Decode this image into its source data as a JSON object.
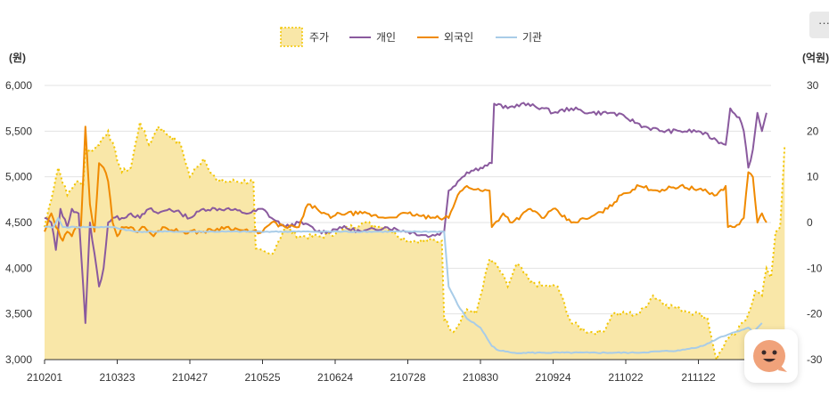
{
  "menu": {
    "label": "···"
  },
  "chart_data": {
    "type": "line",
    "left_axis_label": "(원)",
    "right_axis_label": "(억원)",
    "left_ylim": [
      3000,
      6000
    ],
    "left_ticks": [
      "3,000",
      "3,500",
      "4,000",
      "4,500",
      "5,000",
      "5,500",
      "6,000"
    ],
    "right_ylim": [
      -30,
      30
    ],
    "right_ticks": [
      "-30",
      "-20",
      "-10",
      "0",
      "10",
      "20",
      "30"
    ],
    "x_tick_labels": [
      "210201",
      "210323",
      "210427",
      "210525",
      "210624",
      "210728",
      "210830",
      "210924",
      "211022",
      "211122",
      "21"
    ],
    "x_tick_index": [
      0,
      32,
      64,
      96,
      128,
      160,
      192,
      224,
      256,
      288,
      314
    ],
    "grid": "horizontal",
    "legend_position": "top-center",
    "n_points": 321,
    "series": [
      {
        "name": "주가",
        "axis": "left",
        "style": "area-dotted",
        "color": "#f2c500",
        "fill": "#f9e7a8",
        "keyframes": [
          [
            0,
            4450
          ],
          [
            6,
            5100
          ],
          [
            10,
            4800
          ],
          [
            14,
            4950
          ],
          [
            17,
            4900
          ],
          [
            18,
            5300
          ],
          [
            22,
            5300
          ],
          [
            28,
            5500
          ],
          [
            34,
            5050
          ],
          [
            38,
            5100
          ],
          [
            42,
            5600
          ],
          [
            46,
            5350
          ],
          [
            50,
            5550
          ],
          [
            55,
            5450
          ],
          [
            60,
            5350
          ],
          [
            64,
            5000
          ],
          [
            70,
            5200
          ],
          [
            76,
            4950
          ],
          [
            92,
            4950
          ],
          [
            92,
            4200
          ],
          [
            100,
            4150
          ],
          [
            106,
            4450
          ],
          [
            112,
            4350
          ],
          [
            122,
            4350
          ],
          [
            130,
            4400
          ],
          [
            140,
            4500
          ],
          [
            150,
            4450
          ],
          [
            160,
            4300
          ],
          [
            175,
            4300
          ],
          [
            175,
            3500
          ],
          [
            180,
            3300
          ],
          [
            186,
            3550
          ],
          [
            190,
            3500
          ],
          [
            196,
            4100
          ],
          [
            200,
            4000
          ],
          [
            204,
            3800
          ],
          [
            208,
            4050
          ],
          [
            214,
            3850
          ],
          [
            220,
            3800
          ],
          [
            226,
            3800
          ],
          [
            232,
            3400
          ],
          [
            240,
            3300
          ],
          [
            246,
            3300
          ],
          [
            250,
            3500
          ],
          [
            262,
            3500
          ],
          [
            268,
            3700
          ],
          [
            274,
            3600
          ],
          [
            280,
            3550
          ],
          [
            288,
            3500
          ],
          [
            292,
            3450
          ],
          [
            296,
            3000
          ],
          [
            300,
            3200
          ],
          [
            305,
            3300
          ],
          [
            310,
            3500
          ],
          [
            313,
            3750
          ],
          [
            316,
            3700
          ],
          [
            318,
            4000
          ],
          [
            320,
            3900
          ],
          [
            322,
            4400
          ],
          [
            324,
            4450
          ],
          [
            326,
            5350
          ]
        ]
      },
      {
        "name": "개인",
        "axis": "right",
        "style": "line",
        "color": "#8a5a9e",
        "keyframes": [
          [
            0,
            1
          ],
          [
            3,
            0
          ],
          [
            5,
            -6
          ],
          [
            7,
            3
          ],
          [
            10,
            -1
          ],
          [
            12,
            3
          ],
          [
            15,
            2
          ],
          [
            18,
            -22
          ],
          [
            20,
            0
          ],
          [
            24,
            -14
          ],
          [
            26,
            -10
          ],
          [
            28,
            0
          ],
          [
            30,
            1
          ],
          [
            34,
            1
          ],
          [
            38,
            2
          ],
          [
            42,
            1
          ],
          [
            46,
            3
          ],
          [
            50,
            2
          ],
          [
            55,
            3
          ],
          [
            60,
            2
          ],
          [
            64,
            1
          ],
          [
            70,
            3
          ],
          [
            80,
            3
          ],
          [
            90,
            2
          ],
          [
            96,
            3
          ],
          [
            100,
            1
          ],
          [
            106,
            -1
          ],
          [
            112,
            0
          ],
          [
            118,
            -1
          ],
          [
            120,
            -2
          ],
          [
            125,
            -2
          ],
          [
            130,
            -1
          ],
          [
            140,
            -2
          ],
          [
            150,
            -1
          ],
          [
            160,
            -2
          ],
          [
            170,
            -3
          ],
          [
            176,
            -2
          ],
          [
            178,
            7
          ],
          [
            182,
            9
          ],
          [
            186,
            11
          ],
          [
            192,
            12
          ],
          [
            197,
            13
          ],
          [
            198,
            26
          ],
          [
            204,
            25
          ],
          [
            210,
            26
          ],
          [
            220,
            25
          ],
          [
            224,
            24
          ],
          [
            232,
            25
          ],
          [
            240,
            24
          ],
          [
            250,
            24
          ],
          [
            256,
            23
          ],
          [
            264,
            21
          ],
          [
            272,
            20
          ],
          [
            280,
            20
          ],
          [
            288,
            20
          ],
          [
            296,
            18
          ],
          [
            300,
            17
          ],
          [
            302,
            25
          ],
          [
            306,
            23
          ],
          [
            308,
            20
          ],
          [
            310,
            12
          ],
          [
            312,
            16
          ],
          [
            314,
            24
          ],
          [
            316,
            20
          ],
          [
            318,
            24
          ]
        ]
      },
      {
        "name": "외국인",
        "axis": "right",
        "style": "line",
        "color": "#f08a00",
        "keyframes": [
          [
            0,
            -2
          ],
          [
            3,
            2
          ],
          [
            5,
            -1
          ],
          [
            8,
            -4
          ],
          [
            10,
            -2
          ],
          [
            12,
            -3
          ],
          [
            14,
            -1
          ],
          [
            16,
            -1
          ],
          [
            18,
            21
          ],
          [
            20,
            4
          ],
          [
            22,
            -2
          ],
          [
            24,
            13
          ],
          [
            26,
            12
          ],
          [
            28,
            9
          ],
          [
            30,
            0
          ],
          [
            32,
            -3
          ],
          [
            34,
            -1
          ],
          [
            36,
            -1
          ],
          [
            38,
            -1
          ],
          [
            40,
            -2
          ],
          [
            44,
            -1
          ],
          [
            48,
            -3
          ],
          [
            52,
            -1
          ],
          [
            60,
            -2
          ],
          [
            70,
            -2
          ],
          [
            80,
            -1
          ],
          [
            90,
            -2
          ],
          [
            96,
            -2
          ],
          [
            100,
            0
          ],
          [
            106,
            -1
          ],
          [
            112,
            -1
          ],
          [
            116,
            4
          ],
          [
            120,
            3
          ],
          [
            126,
            1
          ],
          [
            130,
            2
          ],
          [
            140,
            2
          ],
          [
            150,
            1
          ],
          [
            160,
            2
          ],
          [
            170,
            1
          ],
          [
            176,
            1
          ],
          [
            178,
            1
          ],
          [
            182,
            6
          ],
          [
            186,
            8
          ],
          [
            192,
            7
          ],
          [
            196,
            7
          ],
          [
            197,
            -1
          ],
          [
            202,
            2
          ],
          [
            206,
            0
          ],
          [
            214,
            3
          ],
          [
            220,
            1
          ],
          [
            224,
            3
          ],
          [
            232,
            0
          ],
          [
            240,
            1
          ],
          [
            248,
            3
          ],
          [
            254,
            6
          ],
          [
            262,
            8
          ],
          [
            270,
            7
          ],
          [
            280,
            8
          ],
          [
            290,
            7
          ],
          [
            296,
            6
          ],
          [
            300,
            8
          ],
          [
            301,
            -1
          ],
          [
            304,
            -1
          ],
          [
            308,
            1
          ],
          [
            310,
            11
          ],
          [
            312,
            10
          ],
          [
            314,
            0
          ],
          [
            316,
            2
          ],
          [
            318,
            0
          ]
        ]
      },
      {
        "name": "기관",
        "axis": "right",
        "style": "line",
        "color": "#a8cce8",
        "keyframes": [
          [
            0,
            -1
          ],
          [
            4,
            -1
          ],
          [
            6,
            1
          ],
          [
            8,
            -1
          ],
          [
            20,
            -1
          ],
          [
            30,
            -1
          ],
          [
            40,
            -2
          ],
          [
            60,
            -2
          ],
          [
            80,
            -2
          ],
          [
            100,
            -2
          ],
          [
            120,
            -2
          ],
          [
            140,
            -2
          ],
          [
            160,
            -2
          ],
          [
            170,
            -2
          ],
          [
            176,
            -2
          ],
          [
            178,
            -14
          ],
          [
            182,
            -18
          ],
          [
            186,
            -21
          ],
          [
            192,
            -23
          ],
          [
            197,
            -27
          ],
          [
            200,
            -28
          ],
          [
            206,
            -28.5
          ],
          [
            220,
            -28.5
          ],
          [
            240,
            -28.5
          ],
          [
            260,
            -28.5
          ],
          [
            280,
            -28
          ],
          [
            290,
            -27
          ],
          [
            298,
            -25
          ],
          [
            304,
            -24
          ],
          [
            310,
            -23
          ],
          [
            312,
            -24
          ],
          [
            316,
            -22
          ]
        ]
      }
    ]
  }
}
